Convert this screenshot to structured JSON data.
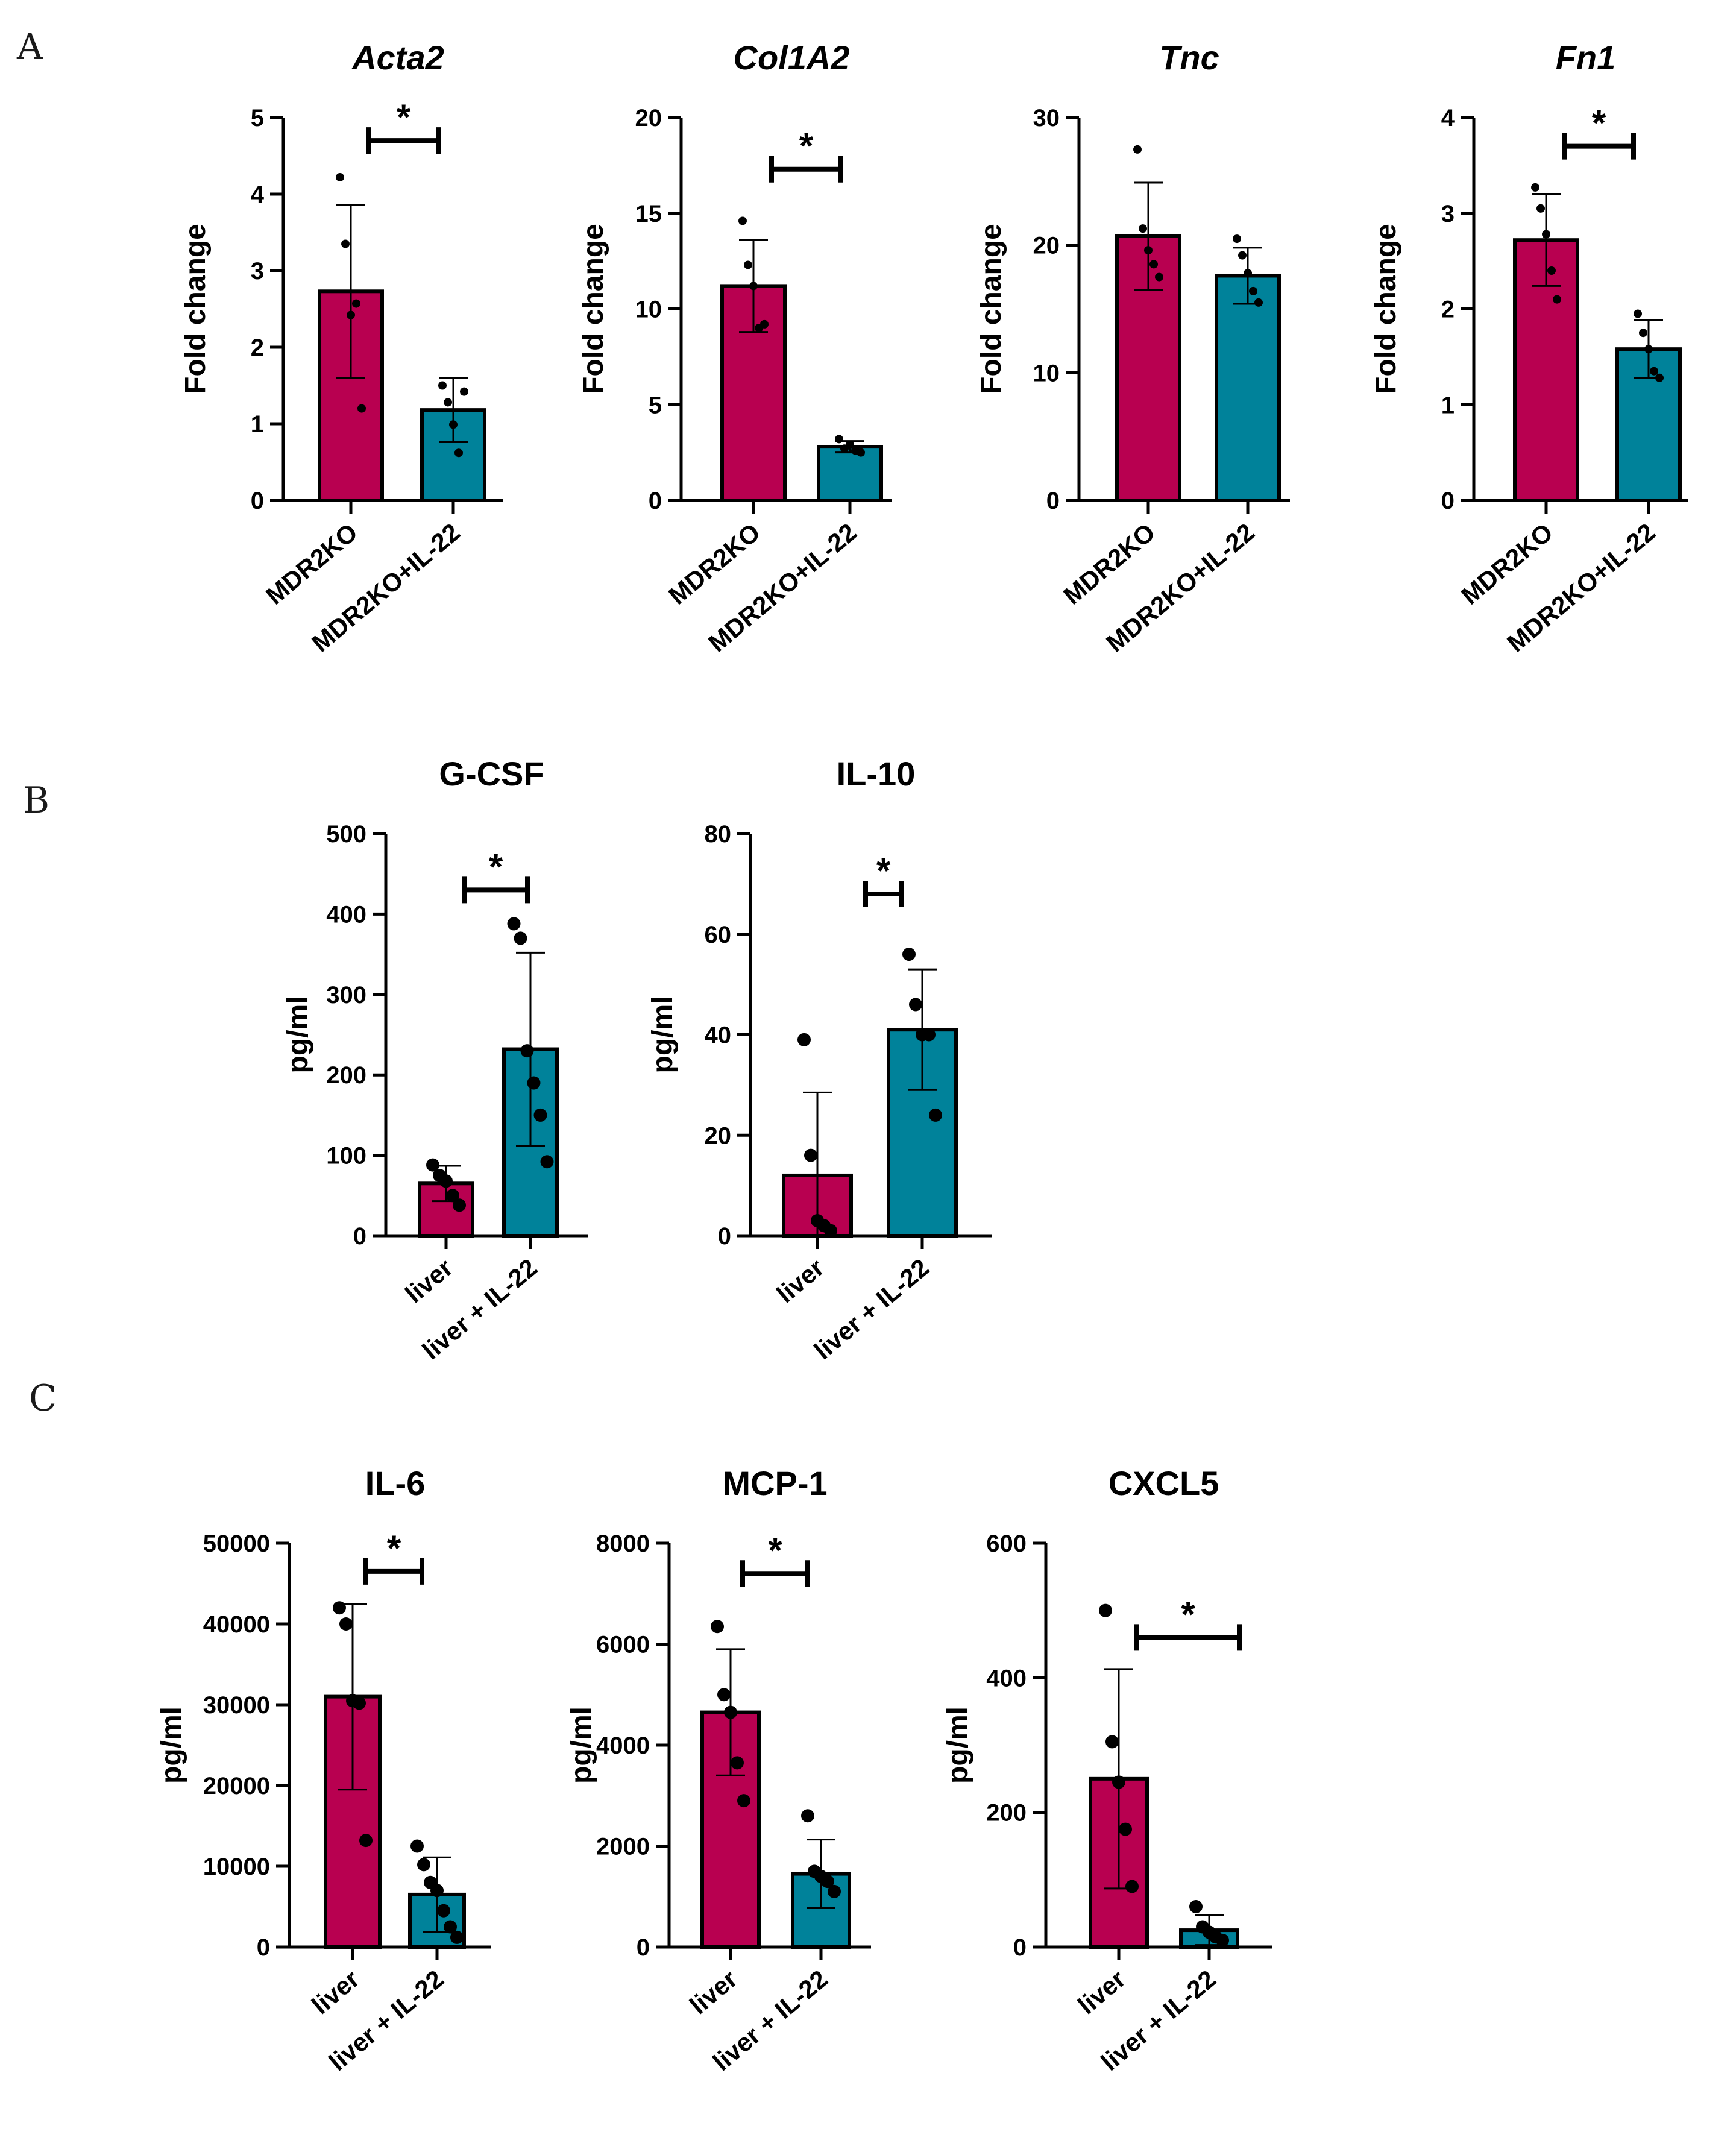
{
  "panel_labels": [
    "A",
    "B",
    "C"
  ],
  "colors": {
    "group1": "#b80050",
    "group2": "#00829a",
    "outline": "#000000",
    "point": "#000000"
  },
  "chart_data": [
    {
      "type": "bar",
      "panel": "A",
      "title": "Acta2",
      "italic_title": true,
      "ylabel": "Fold change",
      "ylim": [
        0,
        5
      ],
      "yticks": [
        "0",
        "1",
        "2",
        "3",
        "4",
        "5"
      ],
      "categories": [
        "MDR2KO",
        "MDR2KO+IL-22"
      ],
      "values": [
        2.73,
        1.18
      ],
      "errors": [
        1.13,
        0.42
      ],
      "points": [
        [
          4.22,
          3.35,
          2.42,
          2.57,
          1.2
        ],
        [
          1.5,
          1.28,
          0.99,
          0.62,
          1.42
        ]
      ],
      "significance": {
        "label": "*",
        "value": 4.7
      }
    },
    {
      "type": "bar",
      "panel": "A",
      "title": "Col1A2",
      "italic_title": true,
      "ylabel": "Fold change",
      "ylim": [
        0,
        20
      ],
      "yticks": [
        "0",
        "5",
        "10",
        "15",
        "20"
      ],
      "categories": [
        "MDR2KO",
        "MDR2KO+IL-22"
      ],
      "values": [
        11.2,
        2.8
      ],
      "errors": [
        2.4,
        0.3
      ],
      "points": [
        [
          14.6,
          12.3,
          11.2,
          9.0,
          9.2
        ],
        [
          3.2,
          2.7,
          2.9,
          2.6,
          2.5
        ]
      ],
      "significance": {
        "label": "*",
        "value": 17.3
      }
    },
    {
      "type": "bar",
      "panel": "A",
      "title": "Tnc",
      "italic_title": true,
      "ylabel": "Fold change",
      "ylim": [
        0,
        30
      ],
      "yticks": [
        "0",
        "10",
        "20",
        "30"
      ],
      "categories": [
        "MDR2KO",
        "MDR2KO+IL-22"
      ],
      "values": [
        20.7,
        17.6
      ],
      "errors": [
        4.2,
        2.2
      ],
      "points": [
        [
          27.5,
          21.3,
          19.6,
          18.5,
          17.5
        ],
        [
          20.5,
          19.2,
          17.8,
          16.4,
          15.5
        ]
      ],
      "significance": null
    },
    {
      "type": "bar",
      "panel": "A",
      "title": "Fn1",
      "italic_title": true,
      "ylabel": "Fold change",
      "ylim": [
        0,
        4
      ],
      "yticks": [
        "0",
        "1",
        "2",
        "3",
        "4"
      ],
      "categories": [
        "MDR2KO",
        "MDR2KO+IL-22"
      ],
      "values": [
        2.72,
        1.58
      ],
      "errors": [
        0.48,
        0.3
      ],
      "points": [
        [
          3.27,
          3.05,
          2.78,
          2.4,
          2.1
        ],
        [
          1.95,
          1.75,
          1.58,
          1.35,
          1.28
        ]
      ],
      "significance": {
        "label": "*",
        "value": 3.7
      }
    },
    {
      "type": "bar",
      "panel": "B",
      "title": "G-CSF",
      "italic_title": false,
      "ylabel": "pg/ml",
      "ylim": [
        0,
        500
      ],
      "yticks": [
        "0",
        "100",
        "200",
        "300",
        "400",
        "500"
      ],
      "categories": [
        "liver",
        "liver + IL-22"
      ],
      "values": [
        65,
        232
      ],
      "errors": [
        22,
        120
      ],
      "points": [
        [
          88,
          75,
          68,
          50,
          38
        ],
        [
          388,
          370,
          230,
          190,
          150,
          92
        ]
      ],
      "significance": {
        "label": "*",
        "value": 430
      }
    },
    {
      "type": "bar",
      "panel": "B",
      "title": "IL-10",
      "italic_title": false,
      "ylabel": "pg/ml",
      "ylim": [
        0,
        80
      ],
      "yticks": [
        "0",
        "20",
        "40",
        "60",
        "80"
      ],
      "categories": [
        "liver",
        "liver + IL-22"
      ],
      "values": [
        12,
        41
      ],
      "errors": [
        16.5,
        12
      ],
      "points": [
        [
          39,
          16,
          3,
          2,
          1
        ],
        [
          56,
          46,
          40,
          40,
          24
        ]
      ],
      "significance": {
        "label": "*",
        "value": 68
      }
    },
    {
      "type": "bar",
      "panel": "C",
      "title": "IL-6",
      "italic_title": false,
      "ylabel": "pg/ml",
      "ylim": [
        0,
        50000
      ],
      "yticks": [
        "0",
        "10000",
        "20000",
        "30000",
        "40000",
        "50000"
      ],
      "categories": [
        "liver",
        "liver + IL-22"
      ],
      "values": [
        31000,
        6500
      ],
      "errors": [
        11500,
        4600
      ],
      "points": [
        [
          42000,
          40000,
          30500,
          30200,
          13200
        ],
        [
          12500,
          10200,
          8000,
          7000,
          4500,
          2500,
          1200
        ]
      ],
      "significance": {
        "label": "*",
        "value": 46500
      }
    },
    {
      "type": "bar",
      "panel": "C",
      "title": "MCP-1",
      "italic_title": false,
      "ylabel": "pg/ml",
      "ylim": [
        0,
        8000
      ],
      "yticks": [
        "0",
        "2000",
        "4000",
        "6000",
        "8000"
      ],
      "categories": [
        "liver",
        "liver + IL-22"
      ],
      "values": [
        4650,
        1450
      ],
      "errors": [
        1250,
        680
      ],
      "points": [
        [
          6350,
          5000,
          4650,
          3650,
          2900
        ],
        [
          2600,
          1500,
          1400,
          1300,
          1100
        ]
      ],
      "significance": {
        "label": "*",
        "value": 7400
      }
    },
    {
      "type": "bar",
      "panel": "C",
      "title": "CXCL5",
      "italic_title": false,
      "ylabel": "pg/ml",
      "ylim": [
        0,
        600
      ],
      "yticks": [
        "0",
        "200",
        "400",
        "600"
      ],
      "categories": [
        "liver",
        "liver + IL-22"
      ],
      "values": [
        250,
        25
      ],
      "errors": [
        163,
        22
      ],
      "points": [
        [
          500,
          305,
          245,
          175,
          90
        ],
        [
          60,
          30,
          22,
          15,
          10
        ]
      ],
      "significance": {
        "label": "*",
        "value": 460
      }
    }
  ]
}
